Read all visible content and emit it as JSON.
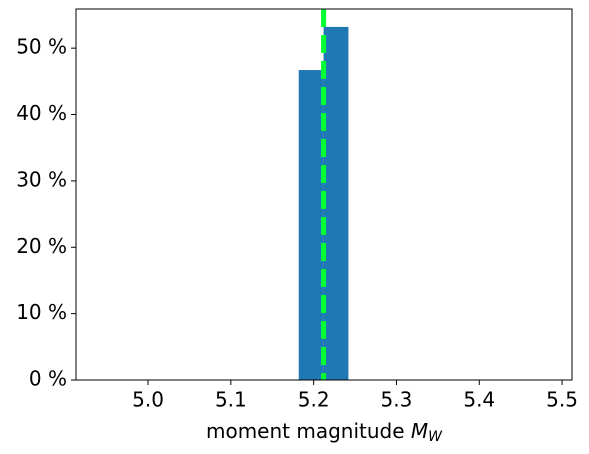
{
  "chart_data": {
    "type": "histogram",
    "xlabel": {
      "text": "moment magnitude",
      "symbol": "M",
      "subscript": "W"
    },
    "bins": [
      5.182,
      5.212,
      5.242
    ],
    "values": [
      46.7,
      53.2
    ],
    "color": "#1f77b4",
    "vline": {
      "value": 5.212,
      "color": "#00ff33",
      "style": "dashed"
    },
    "xlim": [
      4.913,
      5.512
    ],
    "xticks": [
      {
        "value": 5,
        "label": "5.0"
      },
      5.1,
      5.2,
      5.3,
      5.4,
      5.5
    ],
    "ylim": [
      0,
      55.9
    ],
    "yticks": [
      {
        "value": 0,
        "label": "0 %"
      },
      {
        "value": 10,
        "label": "10 %"
      },
      {
        "value": 20,
        "label": "20 %"
      },
      {
        "value": 30,
        "label": "30 %"
      },
      {
        "value": 40,
        "label": "40 %"
      },
      {
        "value": 50,
        "label": "50 %"
      }
    ],
    "grid": false
  }
}
